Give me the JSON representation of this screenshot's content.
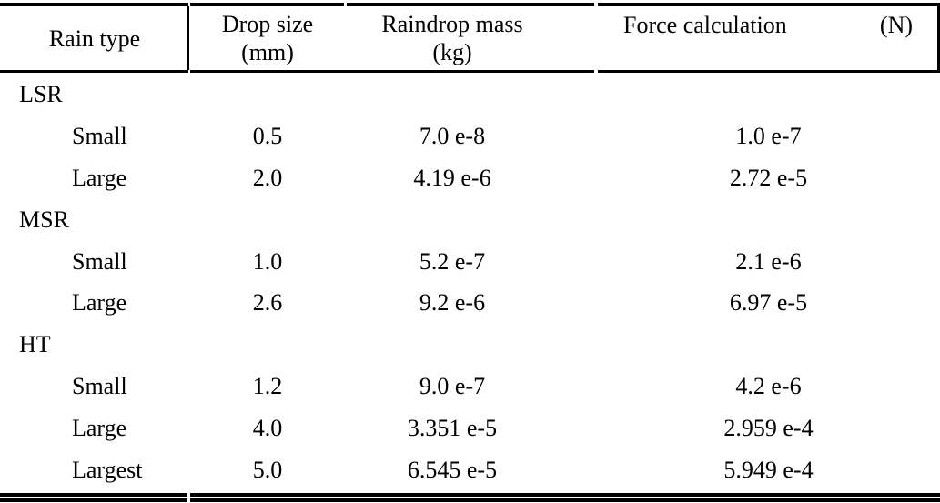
{
  "colors": {
    "text": "#000000",
    "rule": "#000000",
    "background": "#ffffff"
  },
  "table": {
    "columns": [
      {
        "title": "Rain type",
        "unit": ""
      },
      {
        "title": "Drop size",
        "unit": "(mm)"
      },
      {
        "title": "Raindrop mass",
        "unit": "(kg)"
      },
      {
        "title": "Force calculation",
        "unit": "(N)"
      }
    ],
    "rows": [
      {
        "level": "group",
        "label": "LSR",
        "drop_size": "",
        "mass": "",
        "force": ""
      },
      {
        "level": "item",
        "label": "Small",
        "drop_size": "0.5",
        "mass": "7.0 e-8",
        "force": "1.0 e-7"
      },
      {
        "level": "item",
        "label": "Large",
        "drop_size": "2.0",
        "mass": "4.19 e-6",
        "force": "2.72 e-5"
      },
      {
        "level": "group",
        "label": "MSR",
        "drop_size": "",
        "mass": "",
        "force": ""
      },
      {
        "level": "item",
        "label": "Small",
        "drop_size": "1.0",
        "mass": "5.2 e-7",
        "force": "2.1 e-6"
      },
      {
        "level": "item",
        "label": "Large",
        "drop_size": "2.6",
        "mass": "9.2 e-6",
        "force": "6.97 e-5"
      },
      {
        "level": "group",
        "label": "HT",
        "drop_size": "",
        "mass": "",
        "force": ""
      },
      {
        "level": "item",
        "label": "Small",
        "drop_size": "1.2",
        "mass": "9.0 e-7",
        "force": "4.2 e-6"
      },
      {
        "level": "item",
        "label": "Large",
        "drop_size": "4.0",
        "mass": "3.351 e-5",
        "force": "2.959 e-4"
      },
      {
        "level": "item",
        "label": "Largest",
        "drop_size": "5.0",
        "mass": "6.545 e-5",
        "force": "5.949 e-4"
      }
    ]
  }
}
